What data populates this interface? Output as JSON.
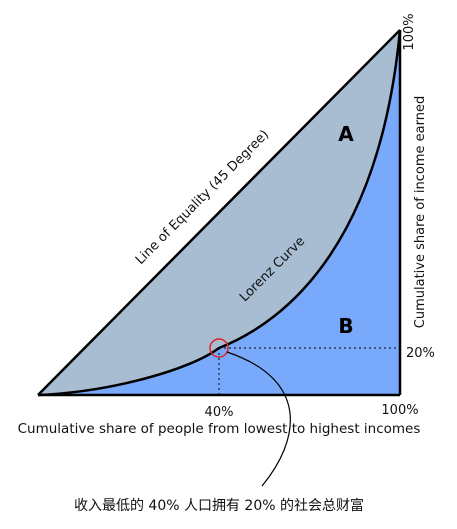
{
  "figure": {
    "line_of_equality_label": "Line of Equality (45 Degree)",
    "lorenz_curve_label": "Lorenz Curve",
    "region_a_label": "A",
    "region_b_label": "B",
    "x_axis_label": "Cumulative share of people from lowest to highest incomes",
    "y_axis_label": "Cumulative share of income earned",
    "x_tick_40": "40%",
    "x_tick_100": "100%",
    "y_tick_20": "20%",
    "y_tick_100": "100%",
    "callout_text": "收入最低的 40% 人口拥有 20% 的社会总财富"
  },
  "colors": {
    "region_a_fill": "#a8bdd2",
    "region_b_fill": "#79a9fb",
    "curve_stroke": "#000000",
    "marker_circle": "#e02020"
  },
  "highlighted_point": {
    "population_share_percent": 40,
    "income_share_percent": 20
  }
}
